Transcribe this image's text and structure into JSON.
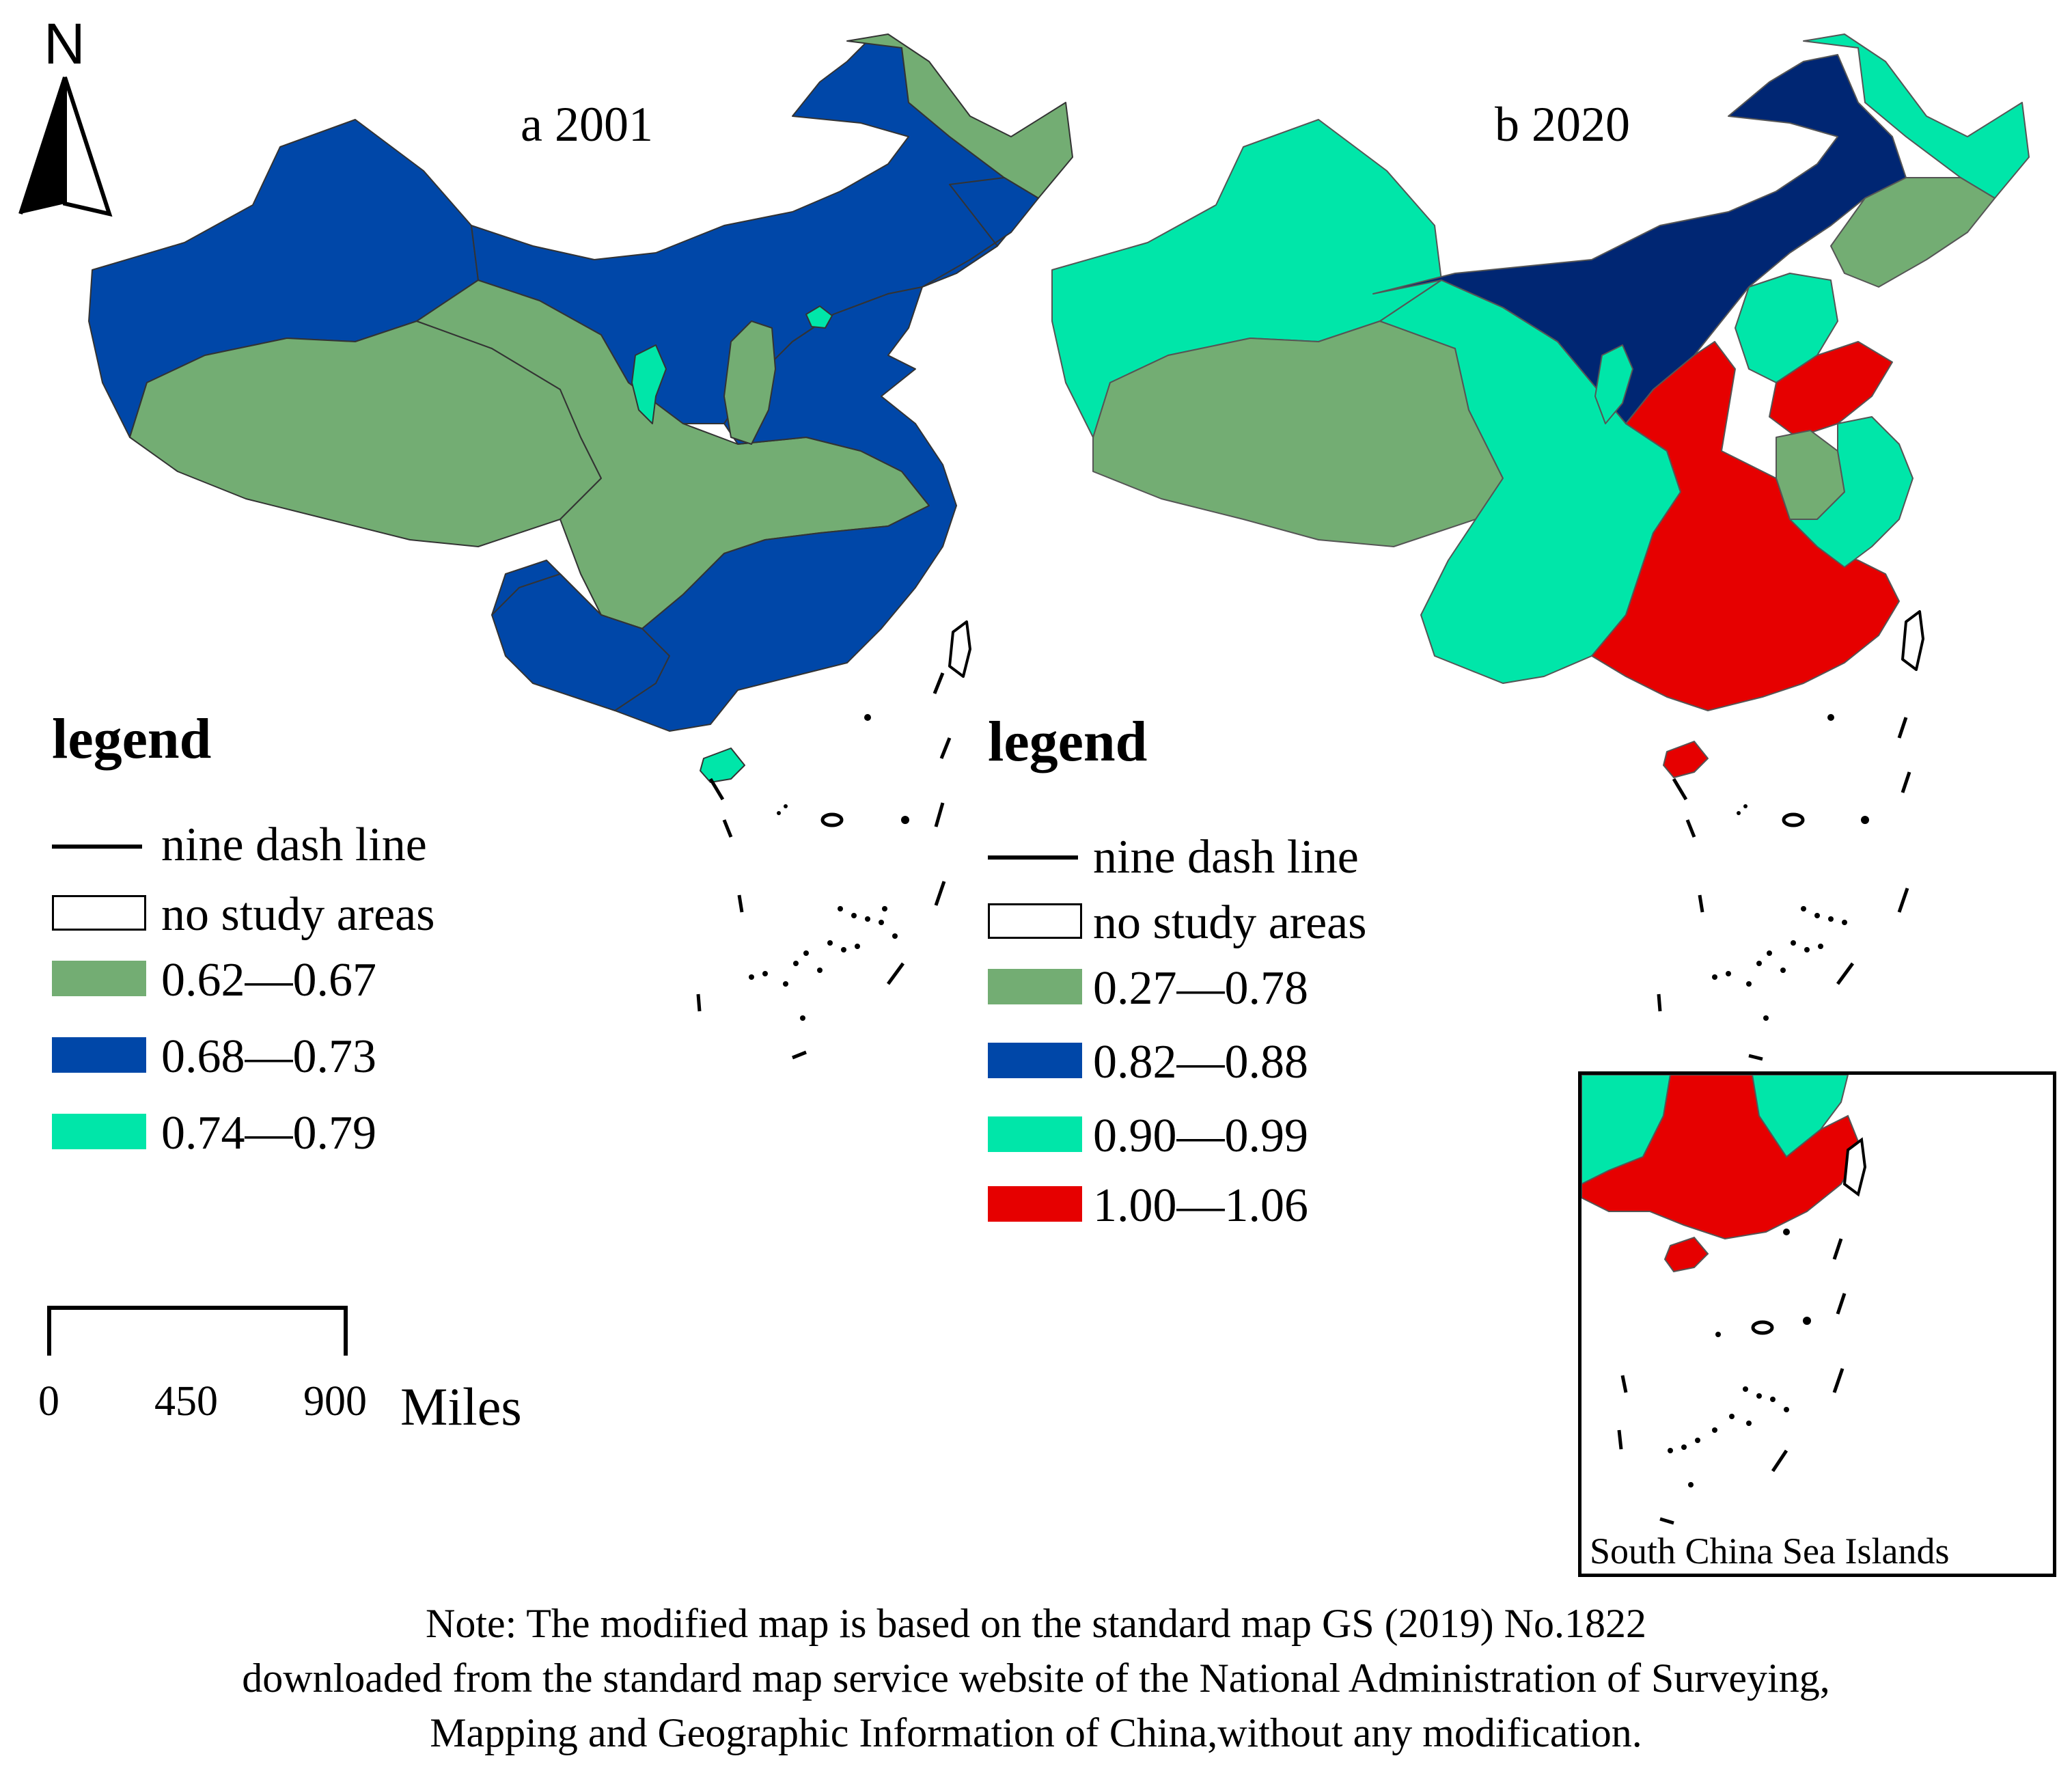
{
  "north_arrow": {
    "label": "N",
    "icon": "north-arrow-icon"
  },
  "panels": [
    {
      "id": "a",
      "title": "a 2001",
      "legend": {
        "title": "legend",
        "items": [
          {
            "kind": "line",
            "label": "nine dash line"
          },
          {
            "kind": "swatch",
            "label": "no study areas",
            "color": "#ffffff"
          },
          {
            "kind": "swatch",
            "label": "0.62—0.67",
            "color": "#73ad73"
          },
          {
            "kind": "swatch",
            "label": "0.68—0.73",
            "color": "#0047a8"
          },
          {
            "kind": "swatch",
            "label": "0.74—0.79",
            "color": "#00e6a9"
          }
        ]
      }
    },
    {
      "id": "b",
      "title": "b 2020",
      "legend": {
        "title": "legend",
        "items": [
          {
            "kind": "line",
            "label": "nine dash line"
          },
          {
            "kind": "swatch",
            "label": "no study areas",
            "color": "#ffffff"
          },
          {
            "kind": "swatch",
            "label": "0.27—0.78",
            "color": "#73ad73"
          },
          {
            "kind": "swatch",
            "label": "0.82—0.88",
            "color": "#0047a8"
          },
          {
            "kind": "swatch",
            "label": "0.90—0.99",
            "color": "#00e6a9"
          },
          {
            "kind": "swatch",
            "label": "1.00—1.06",
            "color": "#e60000"
          }
        ]
      }
    }
  ],
  "scale_bar": {
    "ticks": [
      "0",
      "450",
      "900"
    ],
    "unit": "Miles"
  },
  "inset": {
    "label": "South China Sea Islands"
  },
  "note": {
    "lines": [
      "Note: The modified map is based on the standard map GS (2019) No.1822",
      "downloaded from the standard map service website of the National Administration of Surveying,",
      "Mapping and Geographic Information of China,without any modification."
    ]
  },
  "colors": {
    "green": "#73ad73",
    "blue": "#0047a8",
    "navy": "#002673",
    "cyan": "#00e6a9",
    "red": "#e60000"
  }
}
